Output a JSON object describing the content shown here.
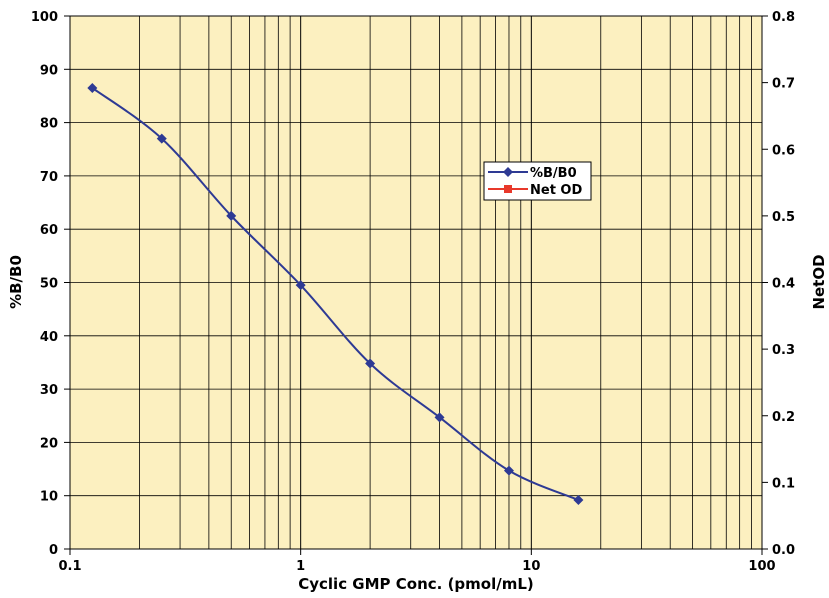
{
  "chart_data": {
    "type": "line",
    "xlabel": "Cyclic GMP Conc. (pmol/mL)",
    "ylabel_left": "%B/B0",
    "ylabel_right": "NetOD",
    "x_scale": "log",
    "xlim": [
      0.1,
      100
    ],
    "ylim_left": [
      0,
      100
    ],
    "ylim_right": [
      0.0,
      0.8
    ],
    "x_ticks": [
      "0.1",
      "1",
      "10",
      "100"
    ],
    "y_left_ticks": [
      "0",
      "10",
      "20",
      "30",
      "40",
      "50",
      "60",
      "70",
      "80",
      "90",
      "100"
    ],
    "y_right_ticks": [
      "0.0",
      "0.1",
      "0.2",
      "0.3",
      "0.4",
      "0.5",
      "0.6",
      "0.7",
      "0.8"
    ],
    "grid": true,
    "plot_background": "#fcf0c0",
    "legend_position": "center-right",
    "series": [
      {
        "name": "%B/B0",
        "axis": "left",
        "color": "#2e3a94",
        "marker": "diamond",
        "x": [
          0.125,
          0.25,
          0.5,
          1,
          2,
          4,
          8,
          16
        ],
        "values": [
          86.5,
          77,
          62.5,
          49.5,
          34.8,
          24.7,
          14.7,
          9.2
        ]
      },
      {
        "name": "Net OD",
        "axis": "right",
        "color": "#e8392b",
        "marker": "square",
        "x": [],
        "values": []
      }
    ]
  }
}
